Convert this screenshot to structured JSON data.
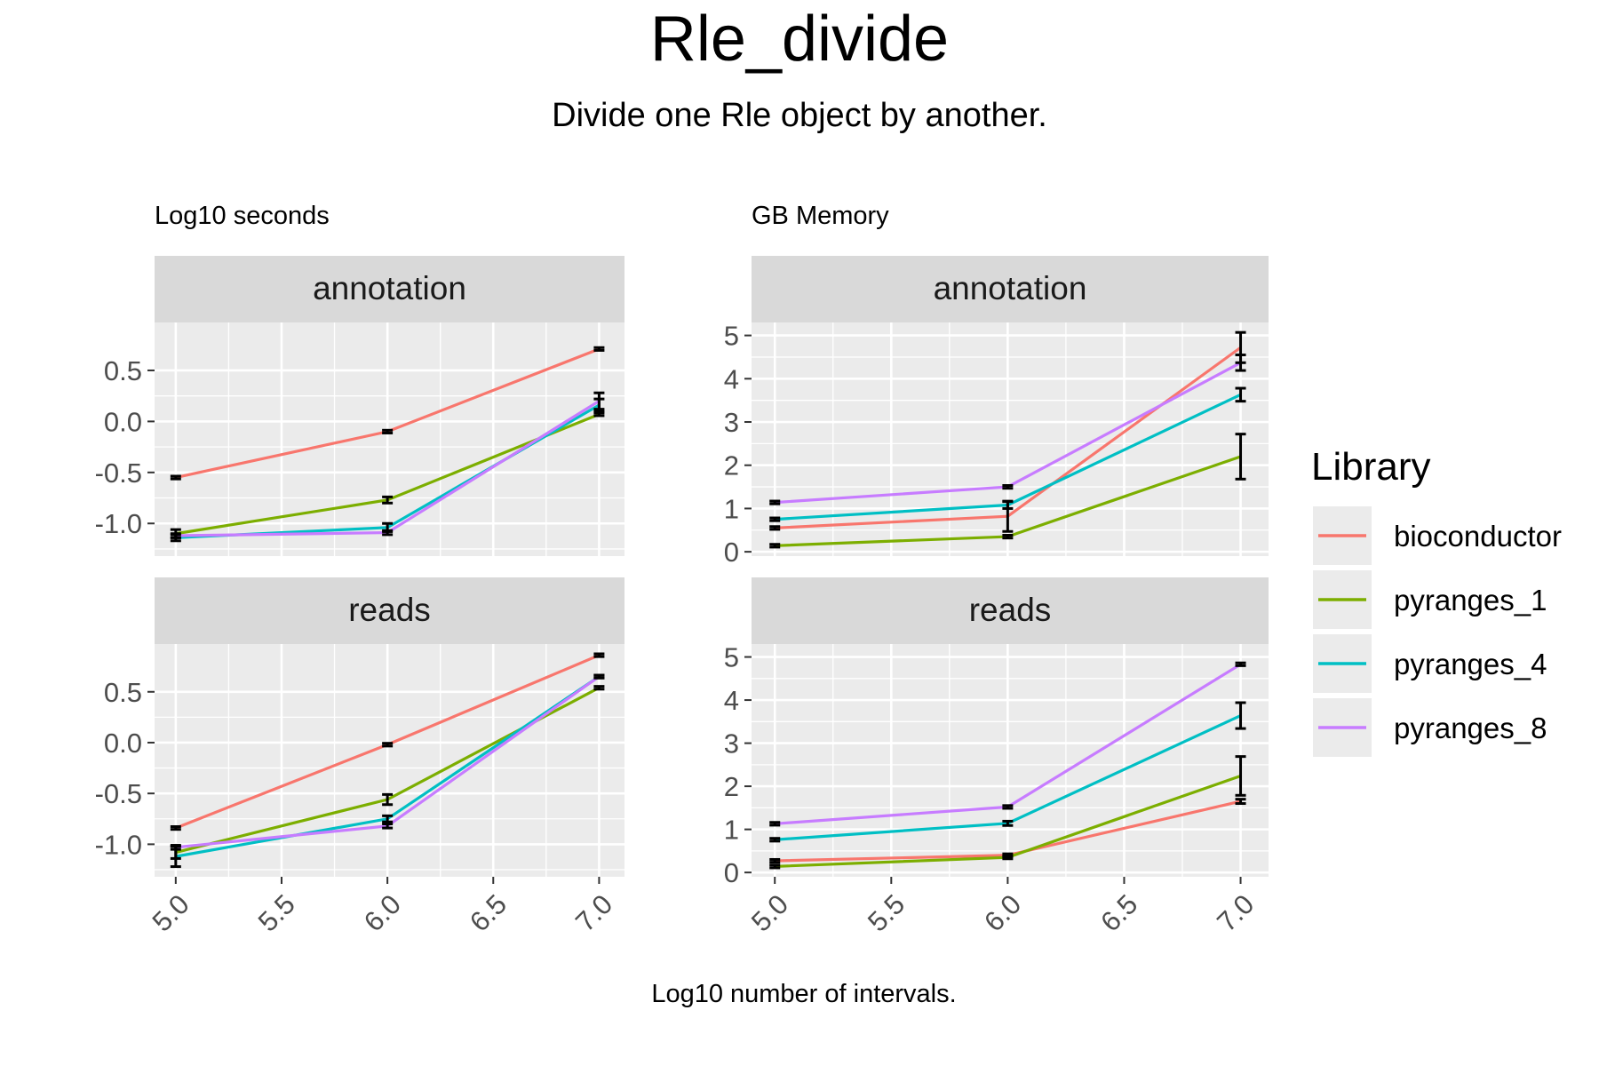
{
  "chart_data": {
    "type": "line",
    "title": "Rle_divide",
    "subtitle": "Divide one Rle object by another.",
    "xlabel": "Log10 number of intervals.",
    "legend": {
      "title": "Library",
      "placement": "right",
      "entries": [
        "bioconductor",
        "pyranges_1",
        "pyranges_4",
        "pyranges_8"
      ]
    },
    "colors": {
      "bioconductor": "#F8766D",
      "pyranges_1": "#7CAE00",
      "pyranges_4": "#00BFC4",
      "pyranges_8": "#C77CFF"
    },
    "x": [
      5.0,
      6.0,
      7.0
    ],
    "xticks": [
      5.0,
      5.5,
      6.0,
      6.5,
      7.0
    ],
    "xtick_labels": [
      "5.0",
      "5.5",
      "6.0",
      "6.5",
      "7.0"
    ],
    "xlim": [
      4.9,
      7.12
    ],
    "grid": true,
    "columns": [
      {
        "title": "Log10 seconds",
        "ylim": [
          -1.32,
          0.97
        ],
        "yticks": [
          -1.0,
          -0.5,
          0.0,
          0.5
        ],
        "ytick_labels": [
          "-1.0",
          "-0.5",
          "0.0",
          "0.5"
        ],
        "panels": [
          {
            "facet": "annotation",
            "series": [
              {
                "name": "bioconductor",
                "values": [
                  -0.55,
                  -0.1,
                  0.71
                ],
                "err": [
                  0.01,
                  0.01,
                  0.01
                ]
              },
              {
                "name": "pyranges_1",
                "values": [
                  -1.1,
                  -0.77,
                  0.07
                ],
                "err": [
                  0.04,
                  0.03,
                  0.01
                ]
              },
              {
                "name": "pyranges_4",
                "values": [
                  -1.14,
                  -1.04,
                  0.16
                ],
                "err": [
                  0.03,
                  0.04,
                  0.06
                ]
              },
              {
                "name": "pyranges_8",
                "values": [
                  -1.12,
                  -1.09,
                  0.2
                ],
                "err": [
                  0.02,
                  0.02,
                  0.08
                ]
              }
            ]
          },
          {
            "facet": "reads",
            "series": [
              {
                "name": "bioconductor",
                "values": [
                  -0.84,
                  -0.02,
                  0.86
                ],
                "err": [
                  0.01,
                  0.01,
                  0.01
                ]
              },
              {
                "name": "pyranges_1",
                "values": [
                  -1.08,
                  -0.56,
                  0.54
                ],
                "err": [
                  0.06,
                  0.05,
                  0.01
                ]
              },
              {
                "name": "pyranges_4",
                "values": [
                  -1.12,
                  -0.75,
                  0.65
                ],
                "err": [
                  0.1,
                  0.03,
                  0.01
                ]
              },
              {
                "name": "pyranges_8",
                "values": [
                  -1.03,
                  -0.82,
                  0.65
                ],
                "err": [
                  0.02,
                  0.02,
                  0.01
                ]
              }
            ]
          }
        ]
      },
      {
        "title": "GB Memory",
        "ylim": [
          -0.1,
          5.3
        ],
        "yticks": [
          0,
          1,
          2,
          3,
          4,
          5
        ],
        "ytick_labels": [
          "0",
          "1",
          "2",
          "3",
          "4",
          "5"
        ],
        "panels": [
          {
            "facet": "annotation",
            "series": [
              {
                "name": "bioconductor",
                "values": [
                  0.55,
                  0.82,
                  4.72
                ],
                "err": [
                  0.02,
                  0.35,
                  0.35
                ]
              },
              {
                "name": "pyranges_1",
                "values": [
                  0.14,
                  0.35,
                  2.2
                ],
                "err": [
                  0.01,
                  0.02,
                  0.52
                ]
              },
              {
                "name": "pyranges_4",
                "values": [
                  0.75,
                  1.08,
                  3.63
                ],
                "err": [
                  0.02,
                  0.08,
                  0.15
                ]
              },
              {
                "name": "pyranges_8",
                "values": [
                  1.14,
                  1.5,
                  4.37
                ],
                "err": [
                  0.01,
                  0.01,
                  0.18
                ]
              }
            ]
          },
          {
            "facet": "reads",
            "series": [
              {
                "name": "bioconductor",
                "values": [
                  0.27,
                  0.4,
                  1.65
                ],
                "err": [
                  0.01,
                  0.02,
                  0.05
                ]
              },
              {
                "name": "pyranges_1",
                "values": [
                  0.14,
                  0.35,
                  2.24
                ],
                "err": [
                  0.01,
                  0.02,
                  0.45
                ]
              },
              {
                "name": "pyranges_4",
                "values": [
                  0.76,
                  1.14,
                  3.64
                ],
                "err": [
                  0.01,
                  0.05,
                  0.3
                ]
              },
              {
                "name": "pyranges_8",
                "values": [
                  1.13,
                  1.52,
                  4.83
                ],
                "err": [
                  0.01,
                  0.02,
                  0.02
                ]
              }
            ]
          }
        ]
      }
    ]
  }
}
